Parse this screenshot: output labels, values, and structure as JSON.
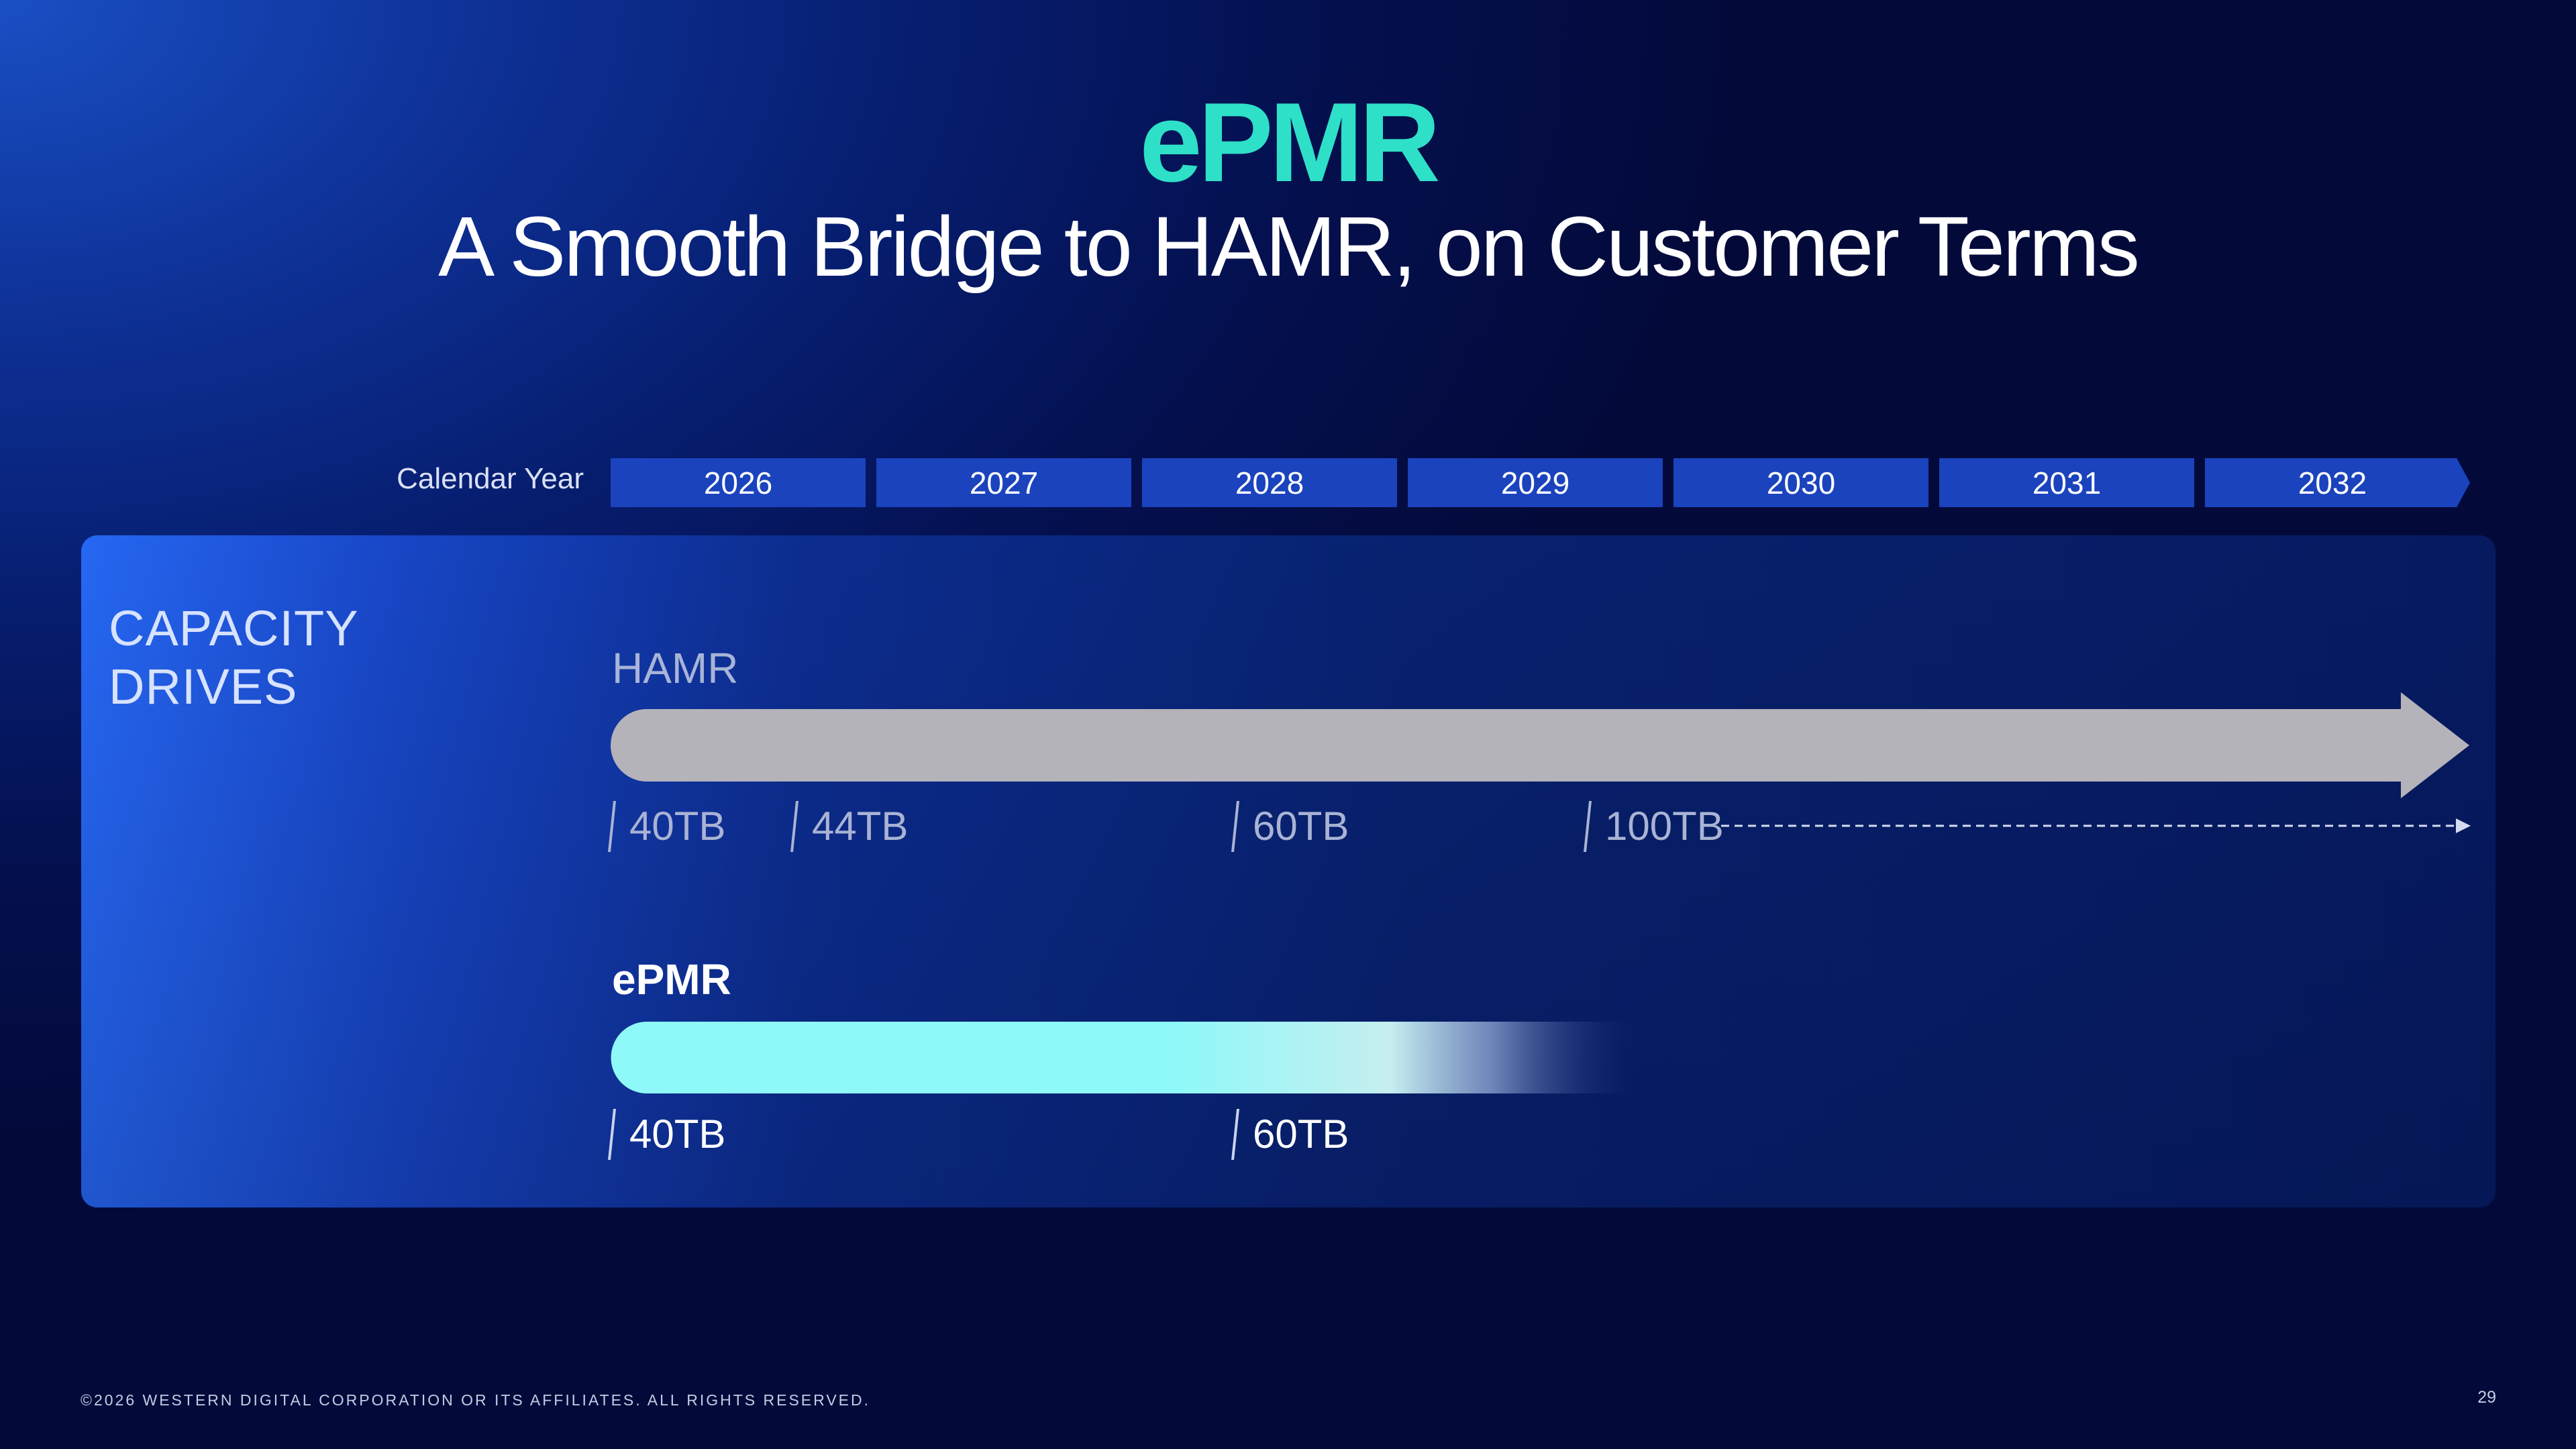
{
  "header": {
    "title": "ePMR",
    "subtitle": "A Smooth Bridge to HAMR, on Customer Terms"
  },
  "timeline": {
    "label": "Calendar Year",
    "years": [
      "2026",
      "2027",
      "2028",
      "2029",
      "2030",
      "2031",
      "2032"
    ]
  },
  "panel": {
    "label_line1": "CAPACITY",
    "label_line2": "DRIVES"
  },
  "hamr": {
    "label": "HAMR",
    "color": "#b5b3ba",
    "capacities": [
      {
        "label": "40TB",
        "year": 2026.0
      },
      {
        "label": "44TB",
        "year": 2026.7
      },
      {
        "label": "60TB",
        "year": 2028.35
      },
      {
        "label": "100TB",
        "year": 2029.68
      }
    ]
  },
  "epmr": {
    "label": "ePMR",
    "color": "#8ff8f8",
    "capacities": [
      {
        "label": "40TB",
        "year": 2026.0
      },
      {
        "label": "60TB",
        "year": 2028.35
      }
    ]
  },
  "footer": {
    "copyright": "©2026 WESTERN DIGITAL CORPORATION OR ITS AFFILIATES. ALL RIGHTS RESERVED.",
    "page_number": "29"
  }
}
